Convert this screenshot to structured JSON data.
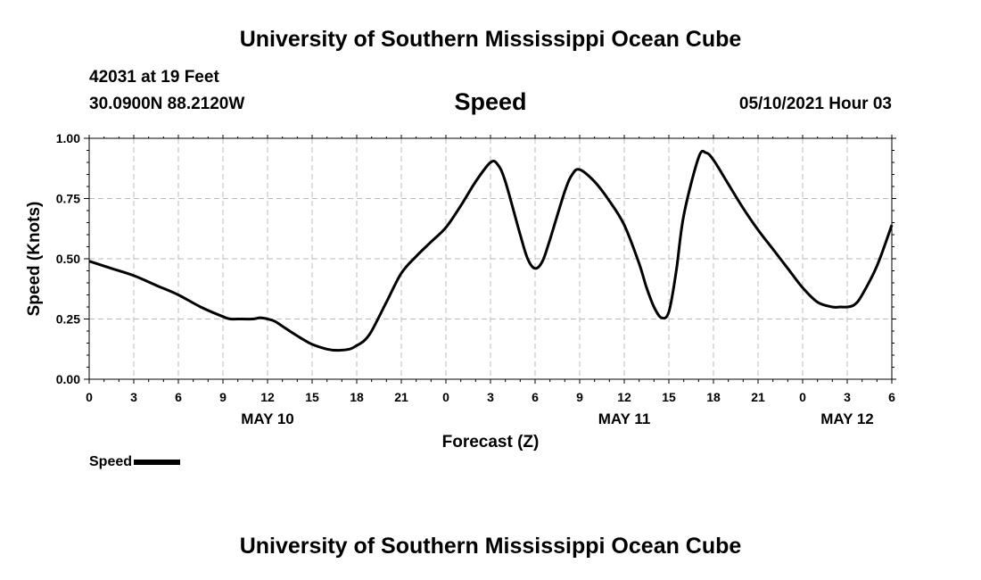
{
  "header": {
    "title": "University of Southern Mississippi Ocean Cube",
    "station": "42031 at 19 Feet",
    "location": "30.0900N  88.2120W",
    "datetime": "05/10/2021 Hour 03"
  },
  "footer": {
    "title": "University of Southern Mississippi Ocean Cube"
  },
  "colors": {
    "line": "#000000",
    "grid": "#bbbbbb",
    "axis": "#000000"
  },
  "chart_data": {
    "type": "line",
    "title": "Speed",
    "xlabel": "Forecast (Z)",
    "ylabel": "Speed (Knots)",
    "xlim": [
      0,
      54
    ],
    "ylim": [
      0,
      1.0
    ],
    "grid": true,
    "legend_position": "bottom-left",
    "x_ticks": [
      0,
      3,
      6,
      9,
      12,
      15,
      18,
      21,
      24,
      27,
      30,
      33,
      36,
      39,
      42,
      45,
      48,
      51,
      54
    ],
    "x_tick_labels": [
      "0",
      "3",
      "6",
      "9",
      "12",
      "15",
      "18",
      "21",
      "0",
      "3",
      "6",
      "9",
      "12",
      "15",
      "18",
      "21",
      "0",
      "3",
      "6"
    ],
    "y_ticks": [
      0,
      0.25,
      0.5,
      0.75,
      1.0
    ],
    "y_tick_labels": [
      "0.00",
      "0.25",
      "0.50",
      "0.75",
      "1.00"
    ],
    "date_labels": [
      {
        "label": "MAY 10",
        "x": 12
      },
      {
        "label": "MAY 11",
        "x": 36
      },
      {
        "label": "MAY 12",
        "x": 51
      }
    ],
    "series": [
      {
        "name": "Speed",
        "x": [
          0,
          1.5,
          3,
          4.5,
          6,
          7.5,
          9,
          9.5,
          10,
          11,
          11.5,
          12,
          12.5,
          13,
          14,
          15,
          16,
          16.7,
          17.5,
          18,
          18.5,
          19,
          20,
          21,
          22,
          23,
          24,
          25,
          26,
          27,
          27.5,
          28,
          29,
          29.5,
          30,
          30.5,
          31,
          32,
          32.5,
          33,
          34,
          35,
          36,
          37,
          37.5,
          38,
          38.5,
          39,
          39.5,
          40,
          41,
          41.5,
          42,
          43,
          44,
          45,
          46,
          47,
          48,
          49,
          50,
          50.5,
          51,
          51.5,
          52,
          53,
          54
        ],
        "y": [
          0.49,
          0.46,
          0.43,
          0.39,
          0.35,
          0.3,
          0.26,
          0.25,
          0.25,
          0.25,
          0.255,
          0.25,
          0.24,
          0.22,
          0.18,
          0.145,
          0.125,
          0.12,
          0.125,
          0.14,
          0.16,
          0.2,
          0.32,
          0.44,
          0.51,
          0.57,
          0.63,
          0.72,
          0.82,
          0.9,
          0.89,
          0.82,
          0.6,
          0.5,
          0.46,
          0.49,
          0.58,
          0.78,
          0.85,
          0.87,
          0.82,
          0.74,
          0.64,
          0.48,
          0.38,
          0.3,
          0.255,
          0.28,
          0.45,
          0.68,
          0.92,
          0.94,
          0.91,
          0.81,
          0.71,
          0.62,
          0.54,
          0.46,
          0.38,
          0.32,
          0.3,
          0.3,
          0.3,
          0.31,
          0.35,
          0.47,
          0.64
        ]
      }
    ]
  }
}
